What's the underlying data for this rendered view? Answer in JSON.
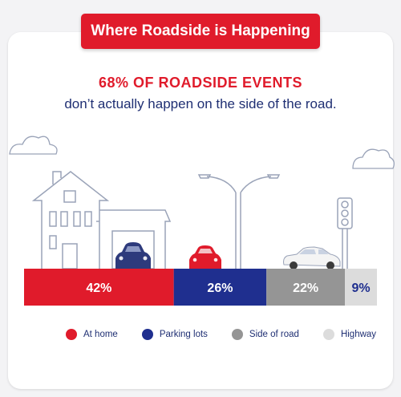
{
  "header": {
    "title": "Where Roadside is Happening",
    "headline": "68% OF ROADSIDE EVENTS",
    "subline": "don’t actually happen on the side of the road."
  },
  "chart_data": {
    "type": "bar",
    "orientation": "horizontal-stacked",
    "categories": [
      "At home",
      "Parking lots",
      "Side of road",
      "Highway"
    ],
    "values": [
      42,
      26,
      22,
      9
    ],
    "value_labels": [
      "42%",
      "26%",
      "22%",
      "9%"
    ],
    "colors": [
      "#e01b2b",
      "#1f2f8f",
      "#959595",
      "#dcdcdc"
    ],
    "label_colors": [
      "#ffffff",
      "#ffffff",
      "#ffffff",
      "#1f2f8f"
    ],
    "legend_position": "bottom"
  },
  "icons": [
    "house-icon",
    "garage-car-icon",
    "street-lamp-icon",
    "traffic-light-icon",
    "red-car-icon",
    "white-car-icon",
    "cloud-icon"
  ]
}
